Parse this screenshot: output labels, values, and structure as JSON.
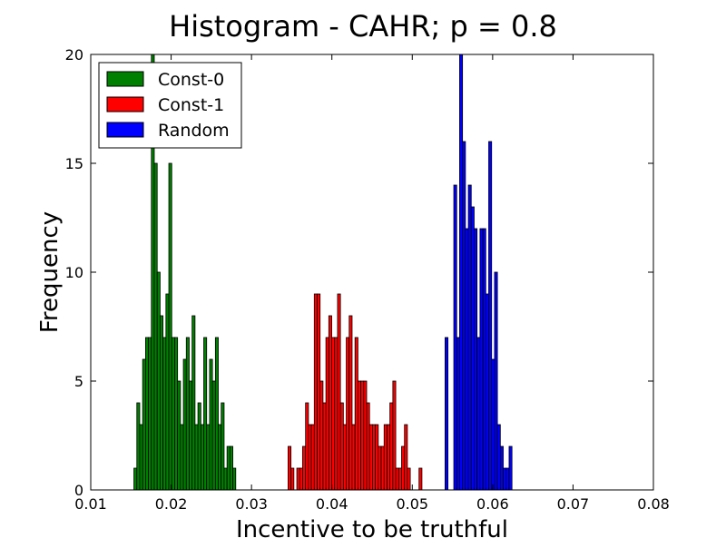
{
  "chart_data": {
    "type": "bar",
    "title": "Histogram - CAHR;  p = 0.8",
    "xlabel": "Incentive to be truthful",
    "ylabel": "Frequency",
    "xlim": [
      0.01,
      0.08
    ],
    "ylim": [
      0,
      20
    ],
    "xticks": [
      0.01,
      0.02,
      0.03,
      0.04,
      0.05,
      0.06,
      0.07,
      0.08
    ],
    "xtick_labels": [
      "0.01",
      "0.02",
      "0.03",
      "0.04",
      "0.05",
      "0.06",
      "0.07",
      "0.08"
    ],
    "yticks": [
      0,
      5,
      10,
      15,
      20
    ],
    "ytick_labels": [
      "0",
      "5",
      "10",
      "15",
      "20"
    ],
    "bin_width": 0.000362,
    "grid": false,
    "legend_position": "upper-left",
    "series": [
      {
        "name": "Const-0",
        "color": "#008000",
        "start": 0.01537,
        "counts": [
          1,
          4,
          3,
          6,
          7,
          7,
          20,
          15,
          10,
          8,
          7,
          9,
          15,
          7,
          7,
          5,
          3,
          6,
          7,
          5,
          8,
          3,
          4,
          3,
          7,
          3,
          6,
          5,
          7,
          3,
          4,
          1,
          2,
          2,
          1
        ]
      },
      {
        "name": "Const-1",
        "color": "#ff0000",
        "start": 0.03455,
        "counts": [
          2,
          1,
          0,
          1,
          1,
          2,
          4,
          3,
          3,
          9,
          9,
          5,
          4,
          7,
          8,
          7,
          7,
          9,
          4,
          3,
          7,
          8,
          3,
          7,
          5,
          5,
          5,
          4,
          3,
          3,
          3,
          2,
          2,
          3,
          3,
          4,
          5,
          1,
          1,
          2,
          3,
          1,
          0,
          0,
          0,
          1
        ]
      },
      {
        "name": "Random",
        "color": "#0000ff",
        "start": 0.05408,
        "counts": [
          7,
          0,
          0,
          14,
          7,
          20,
          16,
          12,
          14,
          13,
          12,
          7,
          12,
          12,
          9,
          16,
          6,
          10,
          3,
          2,
          1,
          1,
          2
        ]
      }
    ]
  }
}
